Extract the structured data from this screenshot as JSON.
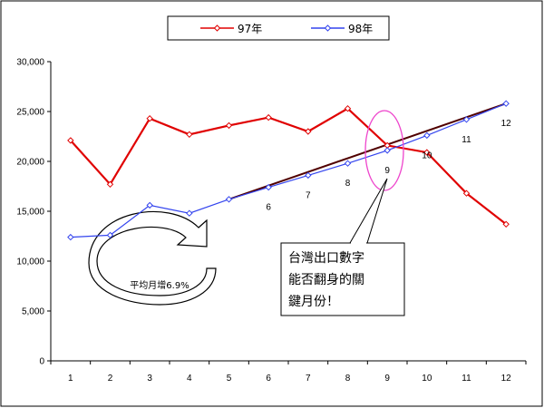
{
  "chart_data": {
    "type": "line",
    "categories": [
      "1",
      "2",
      "3",
      "4",
      "5",
      "6",
      "7",
      "8",
      "9",
      "10",
      "11",
      "12"
    ],
    "ylim": [
      0,
      30000
    ],
    "yticks": [
      "0",
      "5,000",
      "10,000",
      "15,000",
      "20,000",
      "25,000",
      "30,000"
    ],
    "grid": false,
    "legend_position": "top",
    "series": [
      {
        "name": "97年",
        "color": "#e00000",
        "marker": "diamond",
        "values": [
          22100,
          17700,
          24300,
          22700,
          23600,
          24400,
          23000,
          25300,
          21600,
          20900,
          16800,
          13700
        ]
      },
      {
        "name": "98年",
        "color": "#3344ee",
        "marker": "diamond",
        "values": [
          12400,
          12600,
          15600,
          14800,
          16200,
          17400,
          18600,
          19800,
          21100,
          22600,
          24200,
          25800
        ]
      }
    ],
    "trend_line": {
      "from_category": 5,
      "to_category": 12,
      "color": "#500000"
    },
    "point_labels": [
      {
        "category": 6,
        "text": "6"
      },
      {
        "category": 7,
        "text": "7"
      },
      {
        "category": 8,
        "text": "8"
      },
      {
        "category": 9,
        "text": "9"
      },
      {
        "category": 10,
        "text": "10"
      },
      {
        "category": 11,
        "text": "11"
      },
      {
        "category": 12,
        "text": "12"
      }
    ],
    "annotations": {
      "growth_label": "平均月增6.9%",
      "callout_lines": [
        "台灣出口數字",
        "能否翻身的關",
        "鍵月份！"
      ],
      "highlight_color": "#ee44cc"
    }
  }
}
